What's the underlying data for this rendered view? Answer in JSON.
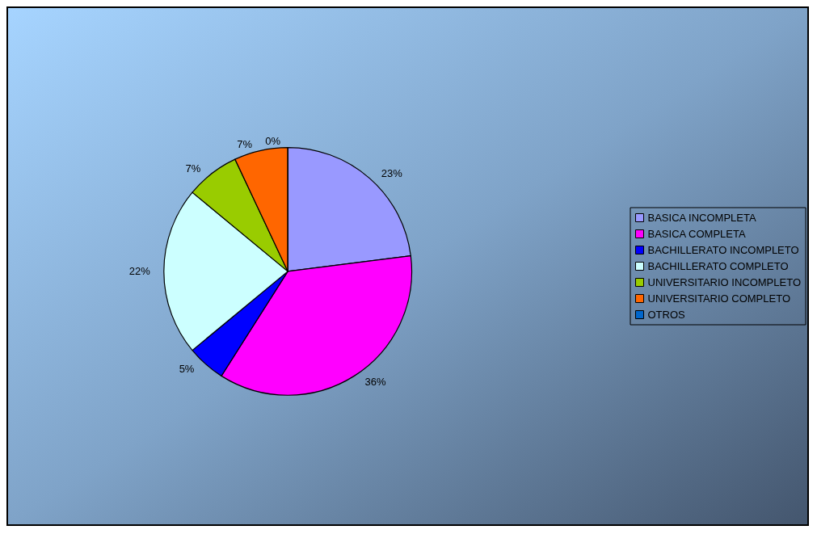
{
  "chart_data": {
    "type": "pie",
    "categories": [
      "BASICA INCOMPLETA",
      "BASICA COMPLETA",
      "BACHILLERATO INCOMPLETO",
      "BACHILLERATO COMPLETO",
      "UNIVERSITARIO INCOMPLETO",
      "UNIVERSITARIO COMPLETO",
      "OTROS"
    ],
    "values": [
      23,
      36,
      5,
      22,
      7,
      7,
      0
    ],
    "colors": [
      "#9999ff",
      "#ff00ff",
      "#0000ff",
      "#ccffff",
      "#99cc00",
      "#ff6600",
      "#0066cc"
    ],
    "value_labels": [
      "23%",
      "36%",
      "5%",
      "22%",
      "7%",
      "7%",
      "0%"
    ],
    "legend": "right"
  }
}
